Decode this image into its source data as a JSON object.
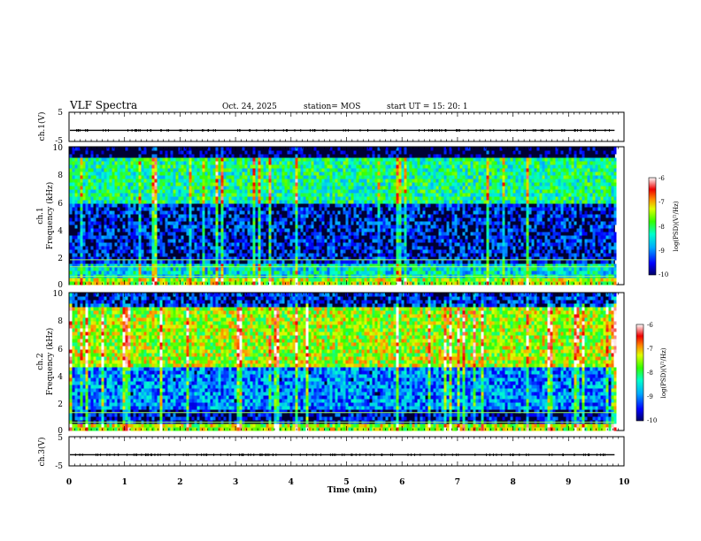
{
  "header": {
    "title": "VLF Spectra",
    "date": "Oct. 24, 2025",
    "station": "station= MOS",
    "start": "start  UT =   15: 20: 1"
  },
  "chart_data": [
    {
      "type": "line",
      "panel": "ch1-waveform",
      "ylabel": "ch.1(V)",
      "ylim": [
        -5,
        5
      ],
      "yticks": [
        "5",
        "-5"
      ],
      "x": [
        0,
        9.83
      ],
      "series": [
        {
          "values": [
            -1.2,
            -1.2
          ]
        }
      ]
    },
    {
      "type": "heatmap",
      "panel": "ch1-spectrogram",
      "ylabel": "ch.1\nFrequency (kHz)",
      "ylim": [
        0,
        10
      ],
      "yticks": [
        "0",
        "2",
        "4",
        "6",
        "8",
        "10"
      ],
      "xlim": [
        0,
        9.83
      ],
      "bands": [
        {
          "range": [
            0,
            0.5
          ],
          "level": -7.5
        },
        {
          "range": [
            0.5,
            1.5
          ],
          "level": -8.5
        },
        {
          "range": [
            1.5,
            5.8
          ],
          "level": -9.5
        },
        {
          "range": [
            5.8,
            9.2
          ],
          "level": -8.2
        },
        {
          "range": [
            9.2,
            10
          ],
          "level": -10
        }
      ],
      "lines_khz": [
        0.6,
        1.3,
        1.8
      ],
      "colorbar": {
        "label": "log(PSD)(V²/Hz)",
        "ticks": [
          "-6",
          "-7",
          "-8",
          "-9",
          "-10"
        ],
        "range": [
          -10,
          -6
        ]
      }
    },
    {
      "type": "heatmap",
      "panel": "ch2-spectrogram",
      "ylabel": "ch.2\nFrequency (kHz)",
      "ylim": [
        0,
        10
      ],
      "yticks": [
        "0",
        "2",
        "4",
        "6",
        "8",
        "10"
      ],
      "xlim": [
        0,
        9.83
      ],
      "bands": [
        {
          "range": [
            0,
            0.5
          ],
          "level": -7.5
        },
        {
          "range": [
            0.5,
            1.5
          ],
          "level": -9.6
        },
        {
          "range": [
            1.5,
            4.5
          ],
          "level": -9.0
        },
        {
          "range": [
            4.5,
            9.0
          ],
          "level": -7.5
        },
        {
          "range": [
            9.0,
            10
          ],
          "level": -9.5
        }
      ],
      "lines_khz": [
        0.6,
        1.3
      ],
      "colorbar": {
        "label": "log(PSD)(V²/Hz)",
        "ticks": [
          "-6",
          "-7",
          "-8",
          "-9",
          "-10"
        ],
        "range": [
          -10,
          -6
        ]
      }
    },
    {
      "type": "line",
      "panel": "ch3-waveform",
      "ylabel": "ch.3(V)",
      "ylim": [
        -5,
        5
      ],
      "yticks": [
        "5",
        "-5"
      ],
      "x": [
        0,
        9.83
      ],
      "series": [
        {
          "values": [
            -1.2,
            -1.2
          ]
        }
      ]
    }
  ],
  "xaxis": {
    "label": "Time  (min)",
    "xlim": [
      0,
      10
    ],
    "ticks": [
      "0",
      "1",
      "2",
      "3",
      "4",
      "5",
      "6",
      "7",
      "8",
      "9",
      "10"
    ]
  }
}
